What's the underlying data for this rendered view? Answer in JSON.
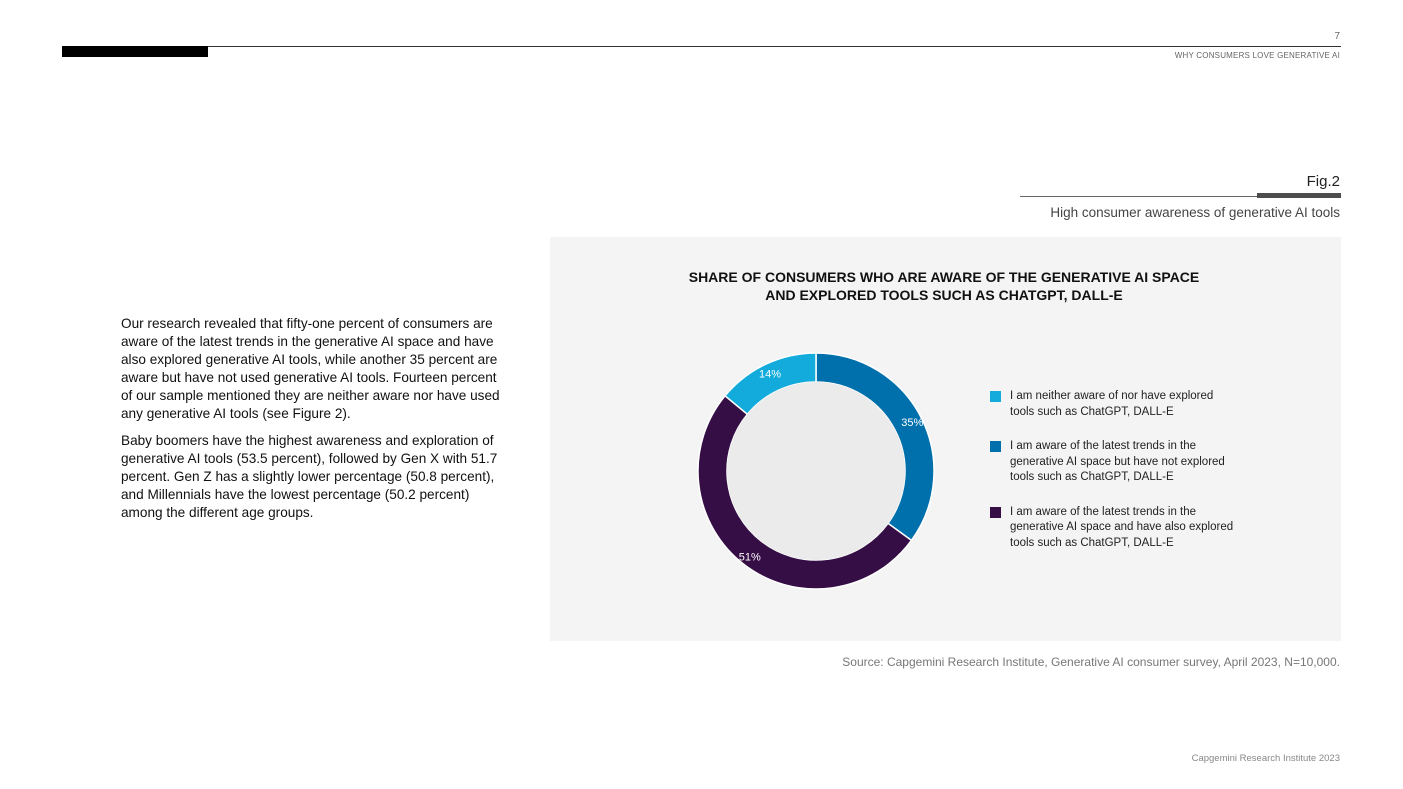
{
  "header": {
    "page_number": "7",
    "running_title": "WHY CONSUMERS LOVE GENERATIVE AI"
  },
  "figure": {
    "label": "Fig.2",
    "caption": "High consumer awareness of generative AI tools"
  },
  "body": {
    "paragraphs": [
      "Our research revealed that fifty-one percent of consumers are aware of the latest trends in the generative AI space and have also explored generative AI tools, while another 35 percent are aware but have not used generative AI tools. Fourteen percent of our sample mentioned they are neither aware nor have used any generative AI tools (see Figure 2).",
      "Baby boomers have the highest awareness and exploration of generative AI tools (53.5 percent), followed by Gen X with 51.7 percent. Gen Z has a slightly lower percentage (50.8 percent), and Millennials have the lowest percentage (50.2 percent) among the different age groups."
    ]
  },
  "chart_data": {
    "type": "pie",
    "variant": "donut",
    "title_lines": [
      "SHARE OF CONSUMERS WHO ARE AWARE OF THE GENERATIVE AI SPACE",
      "AND EXPLORED TOOLS SUCH AS CHATGPT, DALL-E"
    ],
    "slices": [
      {
        "label": "I am aware of the latest trends in the generative AI space but have not explored tools such as ChatGPT, DALL-E",
        "value": 35,
        "data_label": "35%",
        "color": "#0070ad"
      },
      {
        "label": "I am aware of the latest trends in the generative AI space and have also explored tools such as ChatGPT, DALL-E",
        "value": 51,
        "data_label": "51%",
        "color": "#350e45"
      },
      {
        "label": "I am neither aware of nor have explored tools such as ChatGPT, DALL-E",
        "value": 14,
        "data_label": "14%",
        "color": "#12abdb"
      }
    ],
    "start_position": "top",
    "direction": "clockwise",
    "legend_position": "right",
    "legend": [
      {
        "lines": [
          "I am neither aware of nor have explored",
          "tools such as ChatGPT, DALL-E"
        ],
        "color": "#12abdb"
      },
      {
        "lines": [
          "I am aware of the latest trends in the",
          "generative AI space but have not explored",
          "tools such as ChatGPT, DALL-E"
        ],
        "color": "#0070ad"
      },
      {
        "lines": [
          "I am aware of the latest trends in the",
          "generative AI space and have also explored",
          "tools such as ChatGPT, DALL-E"
        ],
        "color": "#350e45"
      }
    ]
  },
  "source": "Source: Capgemini Research Institute, Generative AI consumer survey, April 2023, N=10,000.",
  "footer": "Capgemini Research Institute 2023"
}
